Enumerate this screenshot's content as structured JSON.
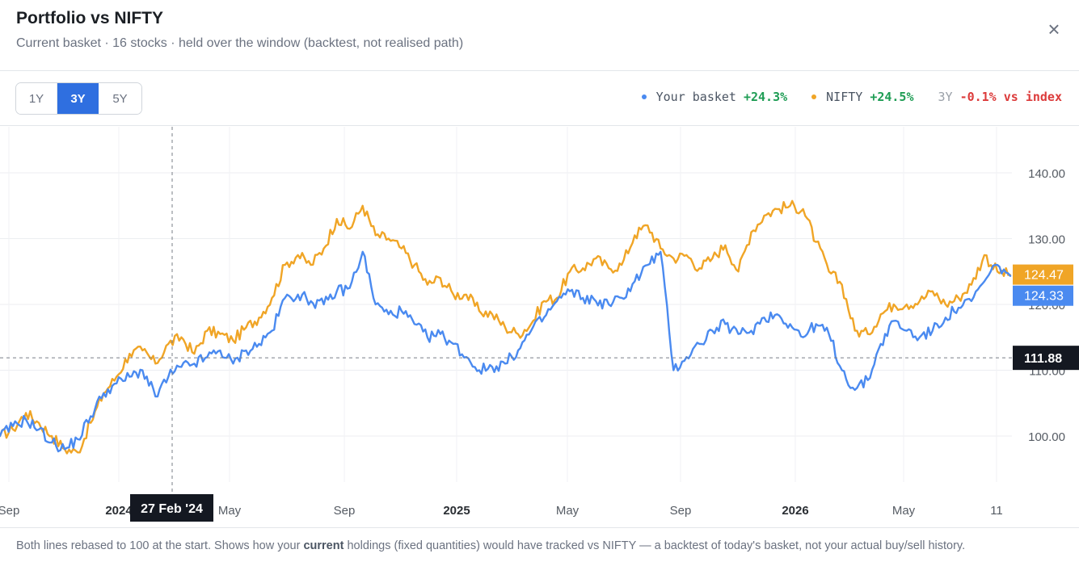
{
  "header": {
    "title": "Portfolio vs NIFTY",
    "subtitle": "Current basket · 16 stocks · held over the window (backtest, not realised path)",
    "close_glyph": "×"
  },
  "range_tabs": [
    {
      "label": "1Y",
      "active": false
    },
    {
      "label": "3Y",
      "active": true
    },
    {
      "label": "5Y",
      "active": false
    }
  ],
  "legend": {
    "basket_label": "Your basket",
    "basket_return": "+24.3%",
    "nifty_label": "NIFTY",
    "nifty_return": "+24.5%",
    "rel_period": "3Y",
    "rel_value": "-0.1% vs index"
  },
  "colors": {
    "basket": "#4a8af0",
    "nifty": "#f0a526",
    "crosshair_label_bg": "#141821",
    "positive": "#1f9d55",
    "negative": "#dc3b3b"
  },
  "crosshair": {
    "date_label": "27 Feb '24",
    "value_label": "111.88",
    "value": 111.88
  },
  "footer": {
    "before": "Both lines rebased to 100 at the start. Shows how your ",
    "emph": "current",
    "after": " holdings (fixed quantities) would have tracked vs NIFTY — a backtest of today's basket, not your actual buy/sell history."
  },
  "chart_data": {
    "type": "line",
    "title": "",
    "ylim": [
      93,
      147
    ],
    "y_ticks": [
      "100.00",
      "110.00",
      "120.00",
      "130.00",
      "140.00"
    ],
    "x_ticks": [
      {
        "label": "Sep",
        "bold": false
      },
      {
        "label": "2024",
        "bold": true
      },
      {
        "label": "May",
        "bold": false
      },
      {
        "label": "Sep",
        "bold": false
      },
      {
        "label": "2025",
        "bold": true
      },
      {
        "label": "May",
        "bold": false
      },
      {
        "label": "Sep",
        "bold": false
      },
      {
        "label": "2026",
        "bold": true
      },
      {
        "label": "May",
        "bold": false
      },
      {
        "label": "11",
        "bold": false
      }
    ],
    "last_values": {
      "nifty": "124.47",
      "basket": "124.33"
    },
    "series": [
      {
        "name": "NIFTY",
        "key": "nifty",
        "values": [
          100.0,
          101.0,
          103.5,
          102.0,
          100.0,
          98.0,
          97.5,
          102.0,
          106.5,
          109.0,
          112.5,
          113.0,
          111.0,
          114.0,
          115.0,
          112.5,
          116.0,
          115.5,
          114.5,
          116.5,
          118.0,
          121.0,
          126.0,
          127.5,
          126.0,
          128.5,
          133.0,
          131.5,
          135.0,
          130.5,
          130.0,
          128.5,
          126.0,
          123.0,
          124.0,
          121.5,
          121.5,
          119.0,
          118.5,
          116.5,
          115.5,
          117.0,
          120.5,
          121.0,
          125.0,
          125.5,
          127.0,
          125.5,
          126.0,
          130.5,
          132.0,
          128.5,
          127.0,
          127.5,
          125.5,
          127.0,
          129.0,
          125.0,
          131.0,
          133.5,
          134.5,
          135.0,
          134.5,
          129.5,
          125.0,
          123.0,
          116.0,
          115.5,
          118.5,
          120.0,
          120.0,
          120.5,
          122.0,
          120.0,
          121.0,
          123.0,
          127.5,
          125.0,
          124.47
        ]
      },
      {
        "name": "Your basket",
        "key": "basket",
        "values": [
          100.0,
          101.5,
          102.5,
          101.0,
          99.0,
          98.0,
          99.5,
          103.0,
          106.5,
          108.0,
          109.0,
          110.0,
          106.0,
          109.0,
          110.5,
          111.0,
          112.0,
          113.0,
          111.0,
          113.0,
          114.0,
          116.0,
          121.0,
          121.5,
          120.5,
          120.0,
          122.0,
          122.5,
          128.0,
          120.0,
          118.5,
          119.0,
          117.0,
          115.0,
          115.5,
          114.0,
          112.0,
          110.0,
          110.5,
          111.0,
          113.0,
          116.0,
          118.0,
          120.5,
          122.0,
          121.0,
          120.5,
          120.0,
          121.0,
          123.5,
          126.0,
          128.0,
          110.0,
          112.0,
          114.0,
          116.0,
          117.0,
          115.5,
          116.0,
          118.0,
          118.5,
          117.0,
          115.0,
          117.0,
          115.5,
          110.0,
          107.0,
          108.5,
          114.0,
          117.5,
          116.0,
          115.0,
          116.0,
          118.0,
          119.5,
          120.5,
          123.5,
          126.0,
          124.33
        ]
      }
    ]
  }
}
